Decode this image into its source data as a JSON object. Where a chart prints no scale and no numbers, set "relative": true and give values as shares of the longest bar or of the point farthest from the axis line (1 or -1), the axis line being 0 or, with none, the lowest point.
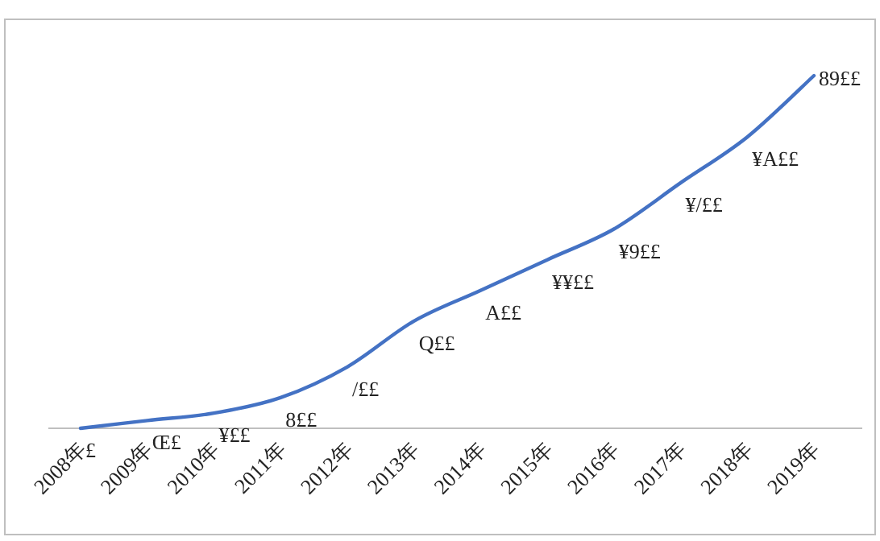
{
  "chart_data": {
    "type": "line",
    "relative": true,
    "categories": [
      "2008年",
      "2009年",
      "2010年",
      "2011年",
      "2012年",
      "2013年",
      "2014年",
      "2015年",
      "2016年",
      "2017年",
      "2018年",
      "2019年"
    ],
    "series": [
      {
        "color": "#4472c4",
        "values": [
          0,
          0.022,
          0.043,
          0.087,
          0.174,
          0.304,
          0.391,
          0.478,
          0.565,
          0.696,
          0.826,
          1
        ]
      }
    ],
    "annotations": [
      {
        "text": "£",
        "x": "2008年",
        "y": 0
      },
      {
        "text": "Œ£",
        "x": "2009年",
        "y": 0.022
      },
      {
        "text": "¥££",
        "x": "2010年",
        "y": 0.043
      },
      {
        "text": "8££",
        "x": "2011年",
        "y": 0.087
      },
      {
        "text": "/££",
        "x": "2012年",
        "y": 0.174
      },
      {
        "text": "Q££",
        "x": "2013年",
        "y": 0.304
      },
      {
        "text": "A££",
        "x": "2014年",
        "y": 0.391
      },
      {
        "text": "¥¥££",
        "x": "2015年",
        "y": 0.478
      },
      {
        "text": "¥9££",
        "x": "2016年",
        "y": 0.565
      },
      {
        "text": "¥/££",
        "x": "2017年",
        "y": 0.696
      },
      {
        "text": "¥A££",
        "x": "2018年",
        "y": 0.826
      },
      {
        "text": "89££",
        "x": "2019年",
        "y": 1
      }
    ],
    "marker": "none"
  }
}
